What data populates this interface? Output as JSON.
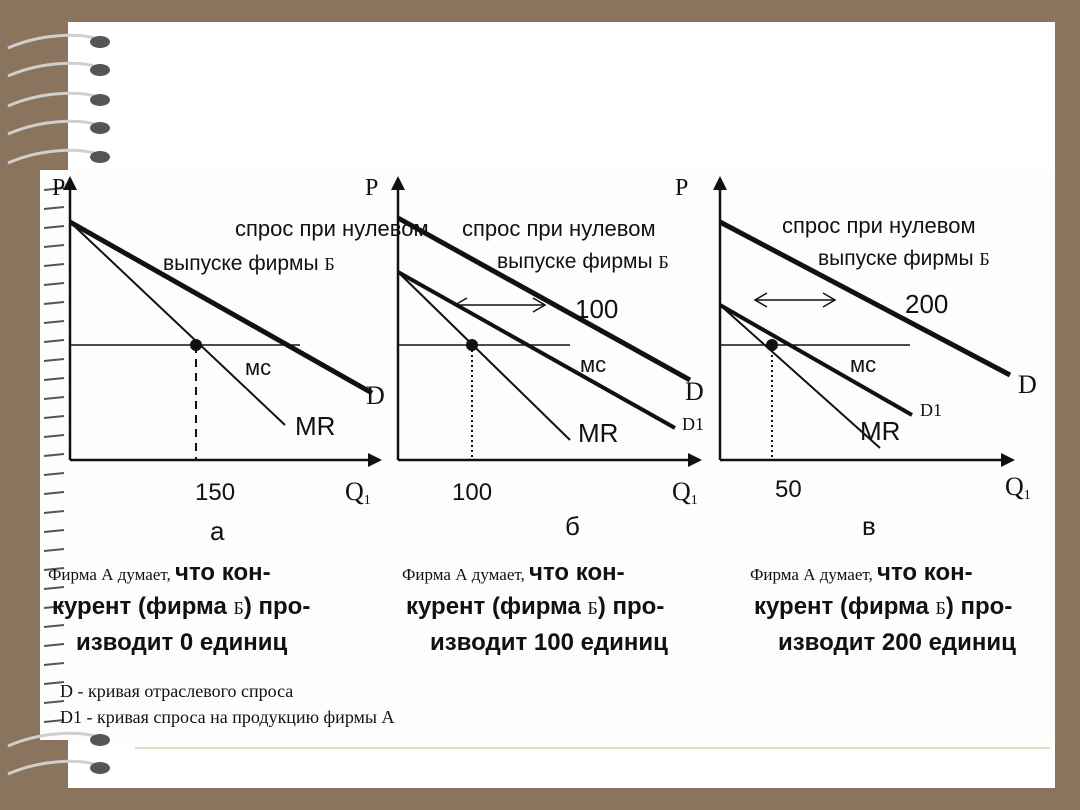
{
  "panels": [
    {
      "axis_p": "P",
      "axis_q": "Q",
      "axis_q_sub": "1",
      "demand_text_1": "спрос при нулевом",
      "demand_text_2": "выпуске фирмы",
      "firm": "Б",
      "curve_d": "D",
      "curve_mc": "мс",
      "curve_mr": "MR",
      "quantity": "150",
      "letter": "а",
      "caption_1a": "Фирма А думает,",
      "caption_1b": "что кон-",
      "caption_2a": "курент (фирма",
      "caption_2b": "Б",
      "caption_2c": ") про-",
      "caption_3": "изводит 0 единиц"
    },
    {
      "axis_p": "P",
      "axis_q": "Q",
      "axis_q_sub": "1",
      "demand_text_1": "спрос при нулевом",
      "demand_text_2": "выпуске фирмы",
      "firm": "Б",
      "curve_d": "D",
      "curve_d1": "D1",
      "curve_mc": "мс",
      "curve_mr": "MR",
      "shift": "100",
      "quantity": "100",
      "letter": "б",
      "caption_1a": "Фирма А думает,",
      "caption_1b": "что кон-",
      "caption_2a": "курент (фирма",
      "caption_2b": "Б",
      "caption_2c": ") про-",
      "caption_3": "изводит 100 единиц"
    },
    {
      "axis_p": "P",
      "axis_q": "Q",
      "axis_q_sub": "1",
      "demand_text_1": "спрос при нулевом",
      "demand_text_2": "выпуске фирмы",
      "firm": "Б",
      "curve_d": "D",
      "curve_d1": "D1",
      "curve_mc": "мс",
      "curve_mr": "MR",
      "shift": "200",
      "quantity": "50",
      "letter": "в",
      "caption_1a": "Фирма А думает,",
      "caption_1b": "что кон-",
      "caption_2a": "курент (фирма",
      "caption_2b": "Б",
      "caption_2c": ") про-",
      "caption_3": "изводит 200 единиц"
    }
  ],
  "legend": [
    "D - кривая отраслевого спроса",
    "D1 - кривая спроса на продукцию фирмы А"
  ]
}
